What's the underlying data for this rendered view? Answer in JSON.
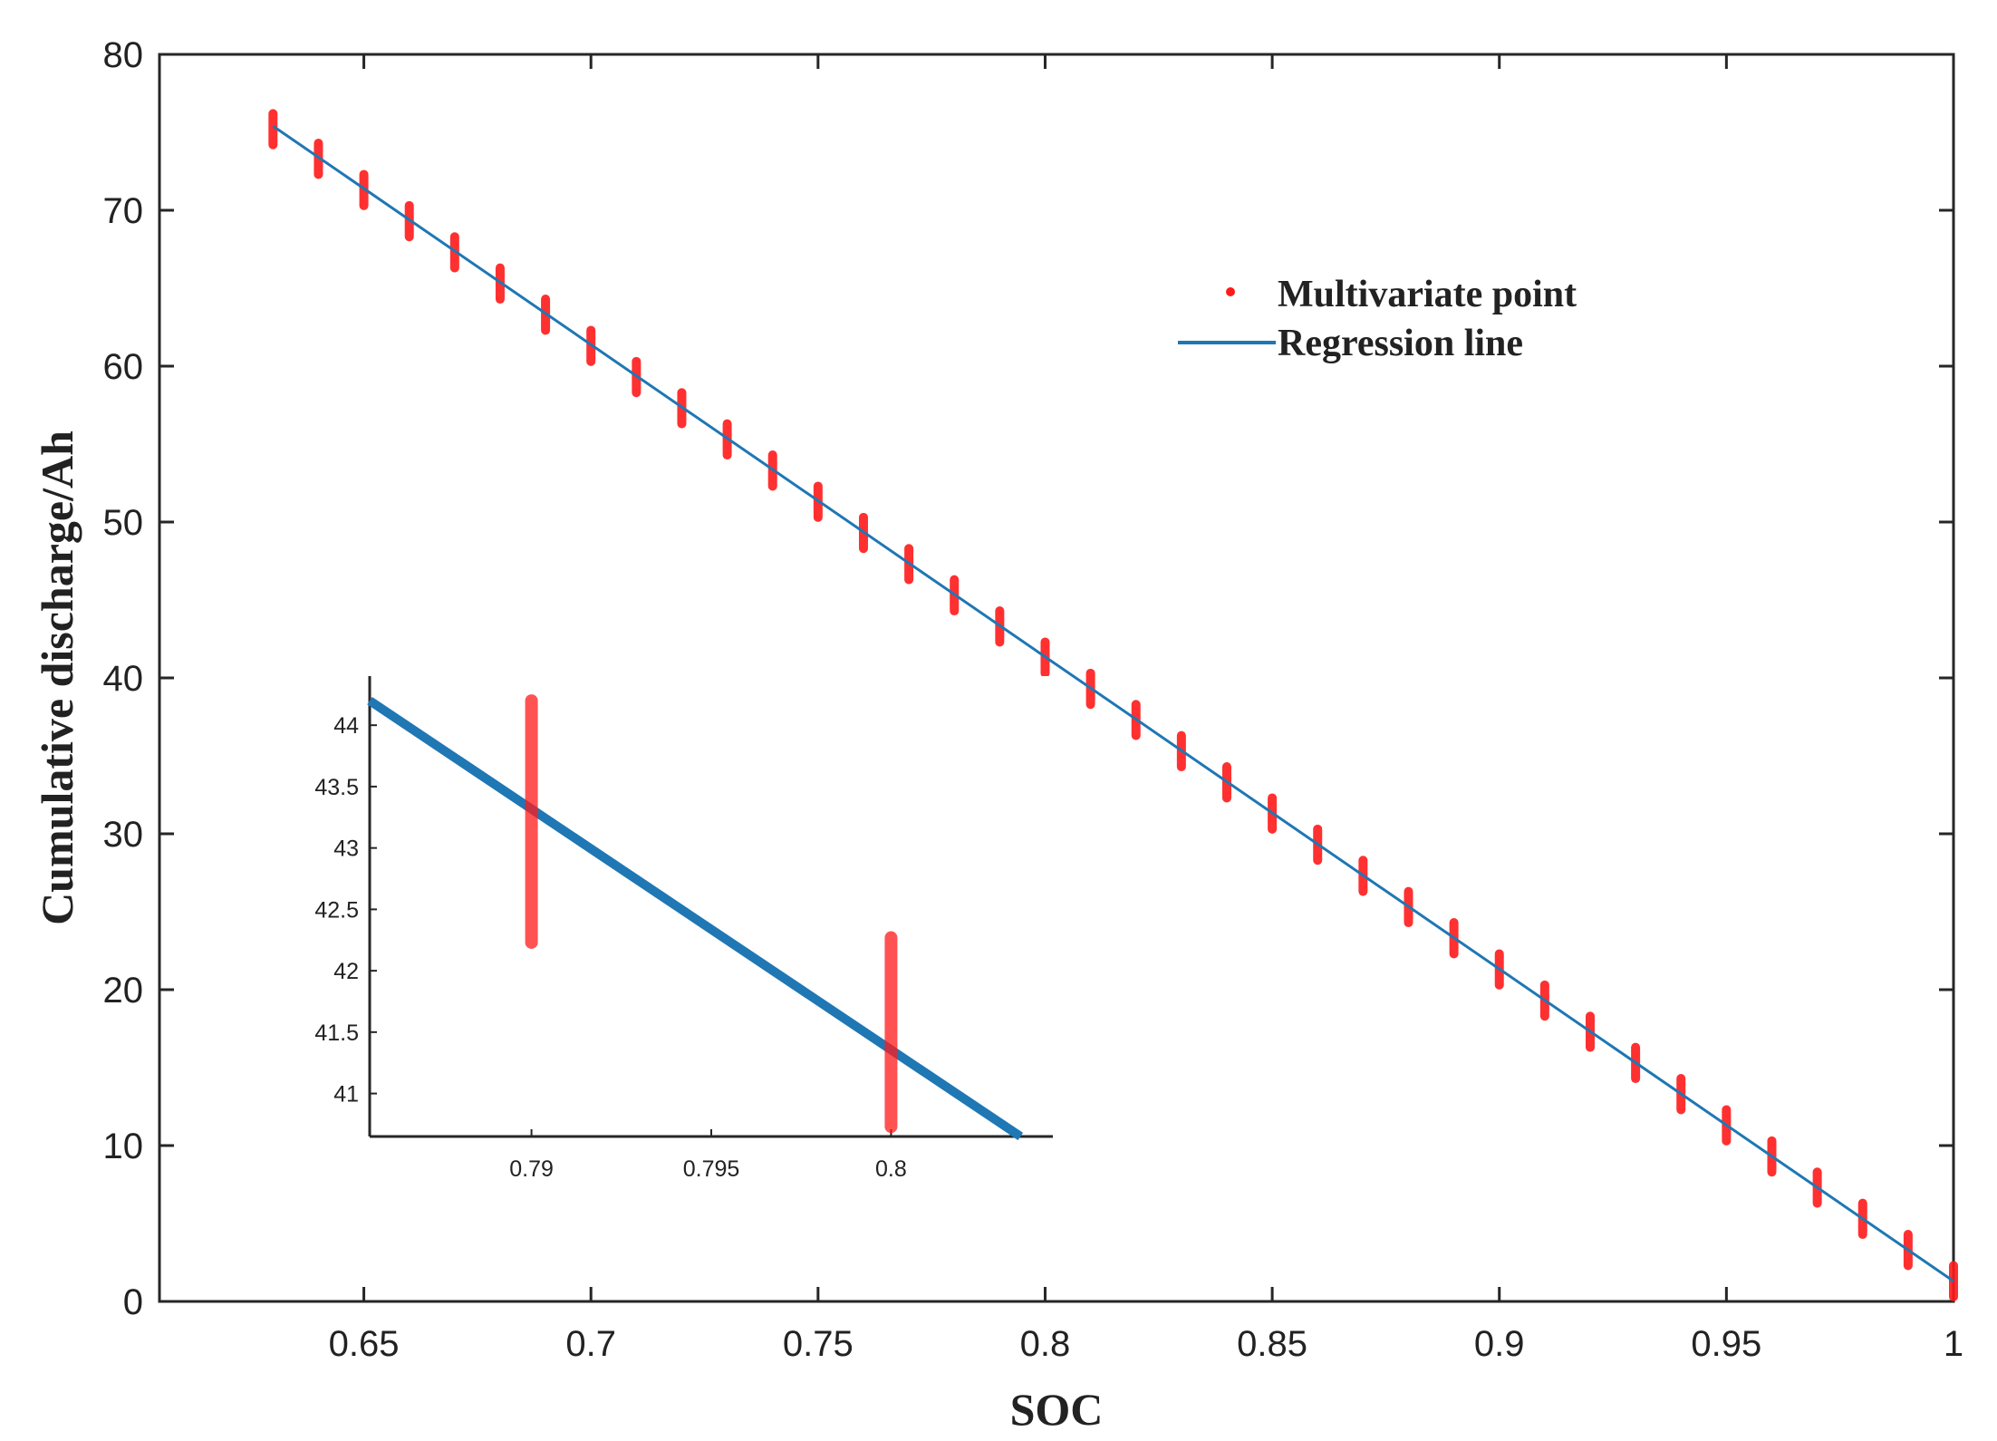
{
  "chart_data": {
    "type": "scatter",
    "title": "",
    "xlabel": "SOC",
    "ylabel": "Cumulative discharge/Ah",
    "xlim": [
      0.605,
      1.0
    ],
    "ylim": [
      0,
      80
    ],
    "xticks": [
      0.65,
      0.7,
      0.75,
      0.8,
      0.85,
      0.9,
      0.95,
      1
    ],
    "xtick_labels": [
      "0.65",
      "0.7",
      "0.75",
      "0.8",
      "0.85",
      "0.9",
      "0.95",
      "1"
    ],
    "yticks": [
      0,
      10,
      20,
      30,
      40,
      50,
      60,
      70,
      80
    ],
    "ytick_labels": [
      "0",
      "10",
      "20",
      "30",
      "40",
      "50",
      "60",
      "70",
      "80"
    ],
    "grid": false,
    "legend_position": "upper-right",
    "series": [
      {
        "name": "Multivariate point",
        "kind": "scatter",
        "color": "#ff1a1a",
        "spread": 1.0,
        "x": [
          0.63,
          0.64,
          0.65,
          0.66,
          0.67,
          0.68,
          0.69,
          0.7,
          0.71,
          0.72,
          0.73,
          0.74,
          0.75,
          0.76,
          0.77,
          0.78,
          0.79,
          0.8,
          0.81,
          0.82,
          0.83,
          0.84,
          0.85,
          0.86,
          0.87,
          0.88,
          0.89,
          0.9,
          0.91,
          0.92,
          0.93,
          0.94,
          0.95,
          0.96,
          0.97,
          0.98,
          0.99,
          1.0
        ],
        "y": [
          75.2,
          73.3,
          71.3,
          69.3,
          67.3,
          65.3,
          63.3,
          61.3,
          59.3,
          57.3,
          55.3,
          53.3,
          51.3,
          49.3,
          47.3,
          45.3,
          43.3,
          41.3,
          39.3,
          37.3,
          35.3,
          33.3,
          31.3,
          29.3,
          27.3,
          25.3,
          23.3,
          21.3,
          19.3,
          17.3,
          15.3,
          13.3,
          11.3,
          9.3,
          7.3,
          5.3,
          3.3,
          1.3
        ]
      },
      {
        "name": "Regression line",
        "kind": "line",
        "color": "#1f77b4",
        "x": [
          0.63,
          1.0
        ],
        "y": [
          75.4,
          1.3
        ]
      }
    ],
    "inset": {
      "xlim": [
        0.7855,
        0.8045
      ],
      "ylim": [
        40.65,
        44.4
      ],
      "xticks": [
        0.79,
        0.795,
        0.8
      ],
      "xtick_labels": [
        "0.79",
        "0.795",
        "0.8"
      ],
      "yticks": [
        41,
        41.5,
        42,
        42.5,
        43,
        43.5,
        44
      ],
      "ytick_labels": [
        "41",
        "41.5",
        "42",
        "42.5",
        "43",
        "43.5",
        "44"
      ],
      "points": [
        {
          "x": 0.79,
          "y_min": 42.23,
          "y_max": 44.2
        },
        {
          "x": 0.8,
          "y_min": 40.73,
          "y_max": 42.27
        }
      ],
      "line": {
        "x": [
          0.7855,
          0.8036
        ],
        "y": [
          44.2,
          40.65
        ]
      }
    }
  }
}
